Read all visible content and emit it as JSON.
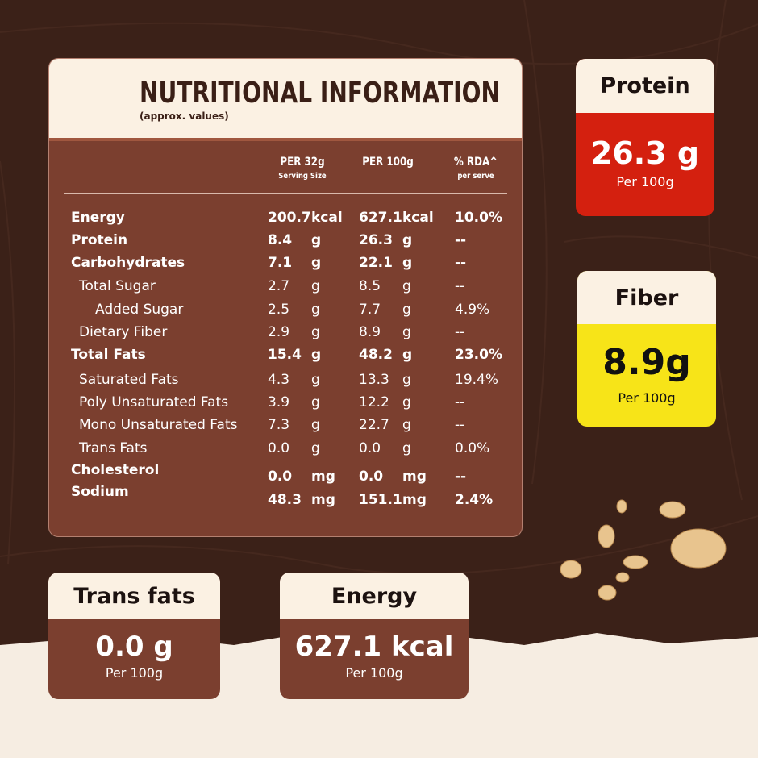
{
  "table": {
    "title": "NUTRITIONAL INFORMATION",
    "subtitle": "(approx. values)",
    "columns": [
      {
        "label": "PER 32g",
        "sublabel": "Serving Size"
      },
      {
        "label": "PER 100g"
      },
      {
        "label": "% RDA^",
        "sublabel": "per serve"
      }
    ],
    "rows": [
      [
        "Energy",
        "200.7",
        "kcal",
        "627.1",
        "kcal",
        "10.0%"
      ],
      [
        "Protein",
        "8.4",
        "g",
        "26.3",
        "g",
        "--"
      ],
      [
        "Carbohydrates",
        "7.1",
        "g",
        "22.1",
        "g",
        "--"
      ],
      [
        "Total Sugar",
        "2.7",
        "g",
        "8.5",
        "g",
        "--"
      ],
      [
        "Added Sugar",
        "2.5",
        "g",
        "7.7",
        "g",
        "4.9%"
      ],
      [
        "Dietary Fiber",
        "2.9",
        "g",
        "8.9",
        "g",
        "--"
      ],
      [
        "Total Fats",
        "15.4",
        "g",
        "48.2",
        "g",
        "23.0%"
      ],
      [
        "Saturated Fats",
        "4.3",
        "g",
        "13.3",
        "g",
        "19.4%"
      ],
      [
        "Poly Unsaturated Fats",
        "3.9",
        "g",
        "12.2",
        "g",
        "--"
      ],
      [
        "Mono Unsaturated Fats",
        "7.3",
        "g",
        "22.7",
        "g",
        "--"
      ],
      [
        "Trans Fats",
        "0.0",
        "g",
        "0.0",
        "g",
        "0.0%"
      ],
      [
        "Cholesterol",
        "0.0",
        "mg",
        "0.0",
        "mg",
        "--"
      ],
      [
        "Sodium",
        "48.3",
        "mg",
        "151.1",
        "mg",
        "2.4%"
      ]
    ]
  },
  "cards": [
    {
      "title": "Protein",
      "value": "26.3 g",
      "note": "Per 100g"
    },
    {
      "title": "Fiber",
      "value": "8.9g",
      "note": "Per 100g"
    },
    {
      "title": "Trans fats",
      "value": "0.0 g",
      "note": "Per 100g"
    },
    {
      "title": "Energy",
      "value": "627.1 kcal",
      "note": "Per 100g"
    }
  ]
}
